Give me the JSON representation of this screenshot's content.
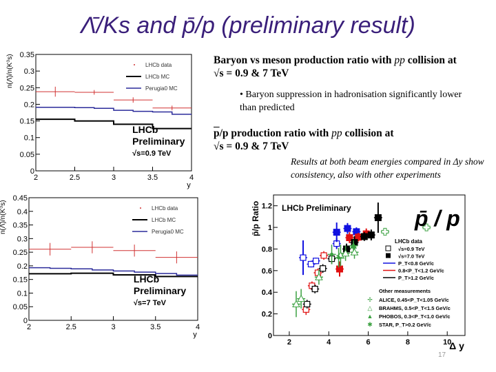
{
  "title": "Λ̄/Ks and p̄/p (preliminary result)",
  "text": {
    "heading1_a": "Baryon vs meson production ratio with ",
    "heading1_pp": "pp",
    "heading1_b": " collision at",
    "heading1_line2": "√s = 0.9 & 7 TeV",
    "bullet": "• Baryon suppression in hadronisation significantly lower than predicted",
    "heading2_p": "p",
    "heading2_a": "/p production ratio with ",
    "heading2_pp": "pp",
    "heading2_b": " collision at",
    "heading2_line2": "√s = 0.9 & 7 TeV",
    "note": "Results at both beam energies compared in Δy show consistency, also with other experiments"
  },
  "page_number": "17",
  "colors": {
    "title": "#3a1f7a",
    "data": "#d03030",
    "lhcb_mc": "#000000",
    "perugia": "#2a2a9a",
    "blue": "#1010e0",
    "red": "#e01010",
    "black": "#000000",
    "green": "#3aa040"
  },
  "chart_data": [
    {
      "type": "histogram",
      "ylabel": "n(Λ̄)/n(K⁰s)",
      "xlabel": "y",
      "xlim": [
        2,
        4
      ],
      "ylim": [
        0,
        0.35
      ],
      "xticks": [
        2,
        2.5,
        3,
        3.5,
        4
      ],
      "yticks": [
        0,
        0.05,
        0.1,
        0.15,
        0.2,
        0.25,
        0.3,
        0.35
      ],
      "annotation": [
        "LHCb",
        "Preliminary",
        "√s=0.9 TeV"
      ],
      "legend": [
        "LHCb data",
        "LHCb MC",
        "Perugia0 MC"
      ],
      "legend_position": "top-right",
      "series": [
        {
          "name": "LHCb data",
          "bins": [
            [
              2,
              2.5
            ],
            [
              2.5,
              3
            ],
            [
              3,
              3.5
            ],
            [
              3.5,
              4
            ]
          ],
          "values": [
            0.238,
            0.236,
            0.213,
            0.189
          ],
          "errors": [
            0.015,
            0.007,
            0.008,
            0.007
          ]
        },
        {
          "name": "LHCb MC",
          "edges": [
            2,
            2.5,
            3,
            3.5,
            4
          ],
          "values": [
            0.155,
            0.15,
            0.14,
            0.127
          ]
        },
        {
          "name": "Perugia0 MC",
          "edges": [
            2,
            2.25,
            2.5,
            2.75,
            3,
            3.25,
            3.5,
            3.75,
            4
          ],
          "values": [
            0.191,
            0.191,
            0.19,
            0.188,
            0.182,
            0.179,
            0.177,
            0.17
          ]
        }
      ]
    },
    {
      "type": "histogram",
      "ylabel": "n(Λ̄)/n(K⁰s)",
      "xlabel": "y",
      "xlim": [
        2,
        4
      ],
      "ylim": [
        0,
        0.45
      ],
      "xticks": [
        2,
        2.5,
        3,
        3.5,
        4
      ],
      "yticks": [
        0,
        0.05,
        0.1,
        0.15,
        0.2,
        0.25,
        0.3,
        0.35,
        0.4,
        0.45
      ],
      "annotation": [
        "LHCb",
        "Preliminary",
        "√s=7 TeV"
      ],
      "legend": [
        "LHCb data",
        "LHCb MC",
        "Perugia0 MC"
      ],
      "legend_position": "top-right",
      "series": [
        {
          "name": "LHCb data",
          "bins": [
            [
              2,
              2.5
            ],
            [
              2.5,
              3
            ],
            [
              3,
              3.5
            ],
            [
              3.5,
              4
            ]
          ],
          "values": [
            0.261,
            0.268,
            0.256,
            0.231
          ],
          "errors": [
            0.023,
            0.022,
            0.022,
            0.022
          ]
        },
        {
          "name": "LHCb MC",
          "edges": [
            2,
            2.5,
            3,
            3.5,
            4
          ],
          "values": [
            0.171,
            0.173,
            0.167,
            0.161
          ]
        },
        {
          "name": "Perugia0 MC",
          "edges": [
            2,
            2.25,
            2.5,
            2.75,
            3,
            3.25,
            3.5,
            3.75,
            4
          ],
          "values": [
            0.193,
            0.191,
            0.189,
            0.185,
            0.181,
            0.177,
            0.172,
            0.166
          ]
        }
      ]
    },
    {
      "type": "scatter",
      "ylabel": "p̄/p Ratio",
      "xlabel": "Δ y",
      "xlim": [
        1.2,
        10.9
      ],
      "ylim": [
        0,
        1.3
      ],
      "xticks": [
        2,
        4,
        6,
        8,
        10
      ],
      "yticks": [
        0,
        0.2,
        0.4,
        0.6,
        0.8,
        1,
        1.2
      ],
      "annotation": "LHCb Preliminary",
      "logo": "p̄ / p",
      "legend_title": "LHCb data",
      "legend_position": "right",
      "legend": [
        "√s=0.9 TeV",
        "√s=7.0 TeV",
        "P_T<0.8 GeV/c",
        "0.8<P_T<1.2 GeV/c",
        "P_T>1.2 GeV/c"
      ],
      "other_title": "Other measurements",
      "other_legend": [
        "ALICE, 0.45<P_T<1.05 GeV/c",
        "BRAHMS, 0.5<P_T<1.5 GeV/c",
        "PHOBOS, 0.3<P_T<1.0 GeV/c",
        "STAR, P_T>0.2 GeV/c"
      ],
      "series": [
        {
          "name": "√s=0.9 TeV, P_T<0.8",
          "color": "blue",
          "marker": "open-square",
          "x": [
            2.7,
            3.1,
            3.35,
            4.4
          ],
          "y": [
            0.72,
            0.66,
            0.69,
            0.85
          ],
          "err": [
            0.16,
            0.03,
            0.03,
            0.05
          ]
        },
        {
          "name": "√s=0.9 TeV, 0.8<P_T<1.2",
          "color": "red",
          "marker": "open-square",
          "x": [
            2.85,
            3.15,
            3.45,
            3.75
          ],
          "y": [
            0.24,
            0.46,
            0.58,
            0.74
          ],
          "err": [
            0.05,
            0.04,
            0.04,
            0.04
          ]
        },
        {
          "name": "√s=0.9 TeV, P_T>1.2",
          "color": "black",
          "marker": "open-square",
          "x": [
            2.9,
            3.3,
            3.7,
            4.15
          ],
          "y": [
            0.29,
            0.43,
            0.62,
            0.71
          ],
          "err": [
            0.04,
            0.04,
            0.04,
            0.05
          ]
        },
        {
          "name": "√s=7.0 TeV, P_T<0.8",
          "color": "blue",
          "marker": "filled-square",
          "x": [
            4.4,
            4.95,
            5.4
          ],
          "y": [
            0.955,
            0.99,
            0.96
          ],
          "err": [
            0.09,
            0.05,
            0.04
          ]
        },
        {
          "name": "√s=7.0 TeV, 0.8<P_T<1.2",
          "color": "red",
          "marker": "filled-square",
          "x": [
            4.55,
            5.05,
            5.5,
            5.9
          ],
          "y": [
            0.615,
            0.905,
            0.91,
            0.94
          ],
          "err": [
            0.07,
            0.05,
            0.04,
            0.05
          ]
        },
        {
          "name": "√s=7.0 TeV, P_T>1.2",
          "color": "black",
          "marker": "filled-square",
          "x": [
            4.9,
            5.3,
            5.8,
            6.15,
            6.5
          ],
          "y": [
            0.8,
            0.86,
            0.915,
            0.93,
            1.09
          ],
          "err": [
            0.05,
            0.06,
            0.04,
            0.05,
            0.14
          ]
        },
        {
          "name": "ALICE",
          "color": "green",
          "marker": "open-cross",
          "x": [
            6.85,
            8.95
          ],
          "y": [
            0.96,
            1.0
          ],
          "err": [
            0.02,
            0.02
          ]
        },
        {
          "name": "BRAHMS",
          "color": "green",
          "marker": "open-triangle",
          "x": [
            2.35,
            2.6,
            3.5,
            4.6,
            4.85,
            5.3
          ],
          "y": [
            0.29,
            0.34,
            0.54,
            0.74,
            0.76,
            0.77
          ],
          "err": [
            0.12,
            0.09,
            0.07,
            0.1,
            0.07,
            0.06
          ]
        },
        {
          "name": "PHOBOS",
          "color": "green",
          "marker": "filled-triangle",
          "x": [
            5.25
          ],
          "y": [
            0.83
          ],
          "err": [
            0.05
          ]
        },
        {
          "name": "STAR",
          "color": "green",
          "marker": "star",
          "x": [
            4.5,
            4.15
          ],
          "y": [
            0.72,
            0.75
          ],
          "err": [
            0.09,
            0.09
          ]
        }
      ]
    }
  ]
}
